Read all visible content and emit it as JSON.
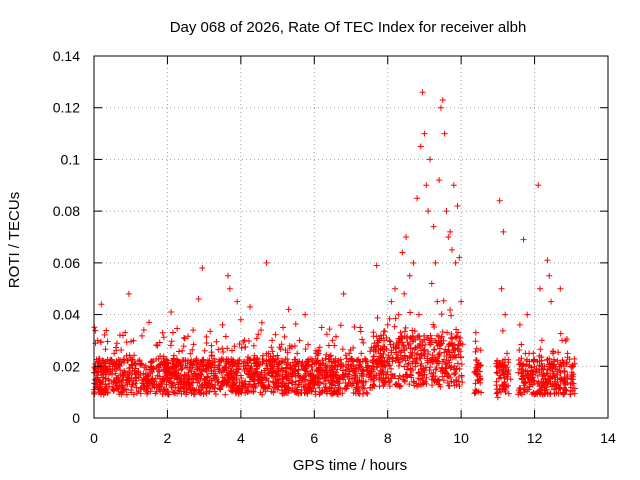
{
  "chart_data": {
    "type": "scatter",
    "title": "Day 068 of 2026, Rate Of TEC Index for receiver albh",
    "xlabel": "GPS time / hours",
    "ylabel": "ROTI / TECUs",
    "xlim": [
      0,
      14
    ],
    "ylim": [
      0,
      0.14
    ],
    "xticks": [
      "0",
      "2",
      "4",
      "6",
      "8",
      "10",
      "12",
      "14"
    ],
    "yticks": [
      "0",
      "0.02",
      "0.04",
      "0.06",
      "0.08",
      "0.1",
      "0.12",
      "0.14"
    ],
    "grid": true,
    "marker": "+",
    "color": "#ff0000",
    "x": [
      0.05,
      0.1,
      0.15,
      0.2,
      0.3,
      0.45,
      0.55,
      0.7,
      0.85,
      0.95,
      1.05,
      1.2,
      1.35,
      1.5,
      1.65,
      1.8,
      1.95,
      2.1,
      2.25,
      2.4,
      2.55,
      2.7,
      2.85,
      2.95,
      3.05,
      3.2,
      3.35,
      3.5,
      3.65,
      3.7,
      3.8,
      3.9,
      4.0,
      4.1,
      4.25,
      4.4,
      4.55,
      4.7,
      4.75,
      4.85,
      5.0,
      5.15,
      5.3,
      5.45,
      5.6,
      5.75,
      5.9,
      6.05,
      6.2,
      6.35,
      6.5,
      6.65,
      6.8,
      6.95,
      7.1,
      7.25,
      7.4,
      7.55,
      7.7,
      7.8,
      7.9,
      8.0,
      8.1,
      8.2,
      8.3,
      8.4,
      8.45,
      8.5,
      8.6,
      8.7,
      8.8,
      8.85,
      8.9,
      8.95,
      9.0,
      9.05,
      9.1,
      9.15,
      9.2,
      9.25,
      9.3,
      9.35,
      9.4,
      9.45,
      9.5,
      9.55,
      9.6,
      9.65,
      9.7,
      9.75,
      9.8,
      9.85,
      9.9,
      9.95,
      10.0,
      10.4,
      10.45,
      10.5,
      11.0,
      11.05,
      11.1,
      11.15,
      11.2,
      11.25,
      11.35,
      11.6,
      11.7,
      11.75,
      11.8,
      11.85,
      12.1,
      12.15,
      12.2,
      12.35,
      12.4,
      12.45,
      12.5,
      12.7,
      12.75,
      12.8,
      12.85,
      12.9,
      13.0,
      13.05
    ],
    "y": [
      0.015,
      0.03,
      0.012,
      0.044,
      0.02,
      0.018,
      0.025,
      0.014,
      0.033,
      0.048,
      0.013,
      0.022,
      0.015,
      0.037,
      0.012,
      0.024,
      0.018,
      0.041,
      0.016,
      0.026,
      0.014,
      0.034,
      0.046,
      0.058,
      0.02,
      0.028,
      0.015,
      0.036,
      0.055,
      0.05,
      0.022,
      0.045,
      0.038,
      0.03,
      0.043,
      0.018,
      0.034,
      0.06,
      0.025,
      0.03,
      0.015,
      0.035,
      0.042,
      0.02,
      0.03,
      0.04,
      0.016,
      0.025,
      0.035,
      0.02,
      0.03,
      0.014,
      0.048,
      0.025,
      0.018,
      0.035,
      0.022,
      0.016,
      0.059,
      0.025,
      0.03,
      0.036,
      0.045,
      0.05,
      0.04,
      0.064,
      0.048,
      0.07,
      0.055,
      0.06,
      0.085,
      0.04,
      0.105,
      0.126,
      0.11,
      0.09,
      0.08,
      0.1,
      0.052,
      0.074,
      0.06,
      0.045,
      0.092,
      0.12,
      0.123,
      0.11,
      0.08,
      0.07,
      0.072,
      0.065,
      0.09,
      0.06,
      0.082,
      0.062,
      0.045,
      0.033,
      0.02,
      0.015,
      0.008,
      0.084,
      0.05,
      0.072,
      0.04,
      0.025,
      0.015,
      0.036,
      0.069,
      0.025,
      0.04,
      0.02,
      0.09,
      0.05,
      0.03,
      0.061,
      0.055,
      0.045,
      0.025,
      0.05,
      0.03,
      0.02,
      0.015,
      0.025,
      0.015,
      0.02
    ],
    "gaps": [
      [
        10.05,
        10.35
      ],
      [
        10.55,
        10.95
      ],
      [
        11.3,
        11.55
      ],
      [
        12.9,
        12.95
      ]
    ]
  }
}
